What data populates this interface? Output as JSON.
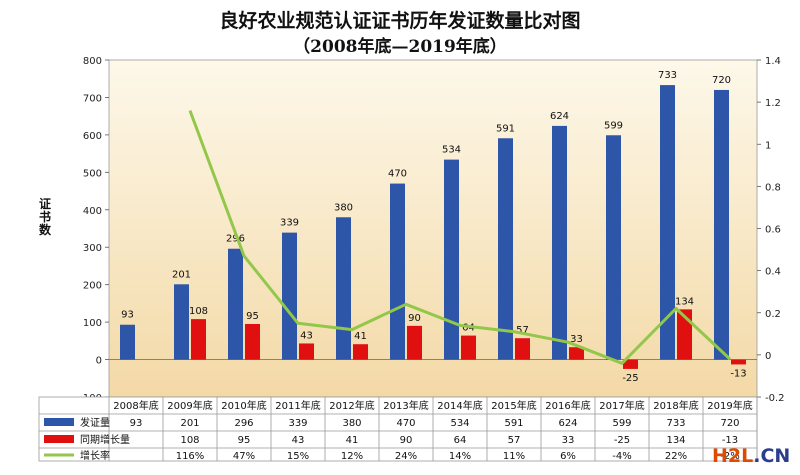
{
  "title": "良好农业规范认证证书历年发证数量比对图",
  "subtitle": "（2008年底—2019年底）",
  "ylabel_chars": [
    "证",
    "书",
    "数"
  ],
  "watermark": {
    "part1": "H2L",
    "part2": ".CN"
  },
  "colors": {
    "issued": "#2e56a8",
    "increase": "#e01010",
    "growth": "#92c74a",
    "bg_top": "#fdf8ea",
    "bg_bottom": "#f3d9a6"
  },
  "chart_data": {
    "type": "bar",
    "categories": [
      "2008年底",
      "2009年底",
      "2010年底",
      "2011年底",
      "2012年底",
      "2013年底",
      "2014年底",
      "2015年底",
      "2016年底",
      "2017年底",
      "2018年底",
      "2019年底"
    ],
    "series": [
      {
        "name": "发证量",
        "type": "bar",
        "axis": "left",
        "values": [
          93,
          201,
          296,
          339,
          380,
          470,
          534,
          591,
          624,
          599,
          733,
          720
        ],
        "labels": [
          "93",
          "201",
          "296",
          "339",
          "380",
          "470",
          "534",
          "591",
          "624",
          "599",
          "733",
          "720"
        ]
      },
      {
        "name": "同期增长量",
        "type": "bar",
        "axis": "left",
        "values": [
          null,
          108,
          95,
          43,
          41,
          90,
          64,
          57,
          33,
          -25,
          134,
          -13
        ],
        "labels": [
          "",
          "108",
          "95",
          "43",
          "41",
          "90",
          "64",
          "57",
          "33",
          "-25",
          "134",
          "-13"
        ]
      },
      {
        "name": "增长率",
        "type": "line",
        "axis": "right",
        "values": [
          null,
          1.16,
          0.47,
          0.15,
          0.12,
          0.24,
          0.14,
          0.11,
          0.06,
          -0.04,
          0.22,
          -0.02
        ],
        "labels": [
          "",
          "116%",
          "47%",
          "15%",
          "12%",
          "24%",
          "14%",
          "11%",
          "6%",
          "-4%",
          "22%",
          "-2%"
        ]
      }
    ],
    "ylabel": "证书数",
    "ylim": [
      -100,
      800
    ],
    "yticks": [
      "-100",
      "0",
      "100",
      "200",
      "300",
      "400",
      "500",
      "600",
      "700",
      "800"
    ],
    "y2lim": [
      -0.2,
      1.4
    ],
    "y2ticks": [
      "-0.2",
      "0",
      "0.2",
      "0.4",
      "0.6",
      "0.8",
      "1",
      "1.2",
      "1.4"
    ],
    "grid": false,
    "legend": "data-table-left"
  }
}
